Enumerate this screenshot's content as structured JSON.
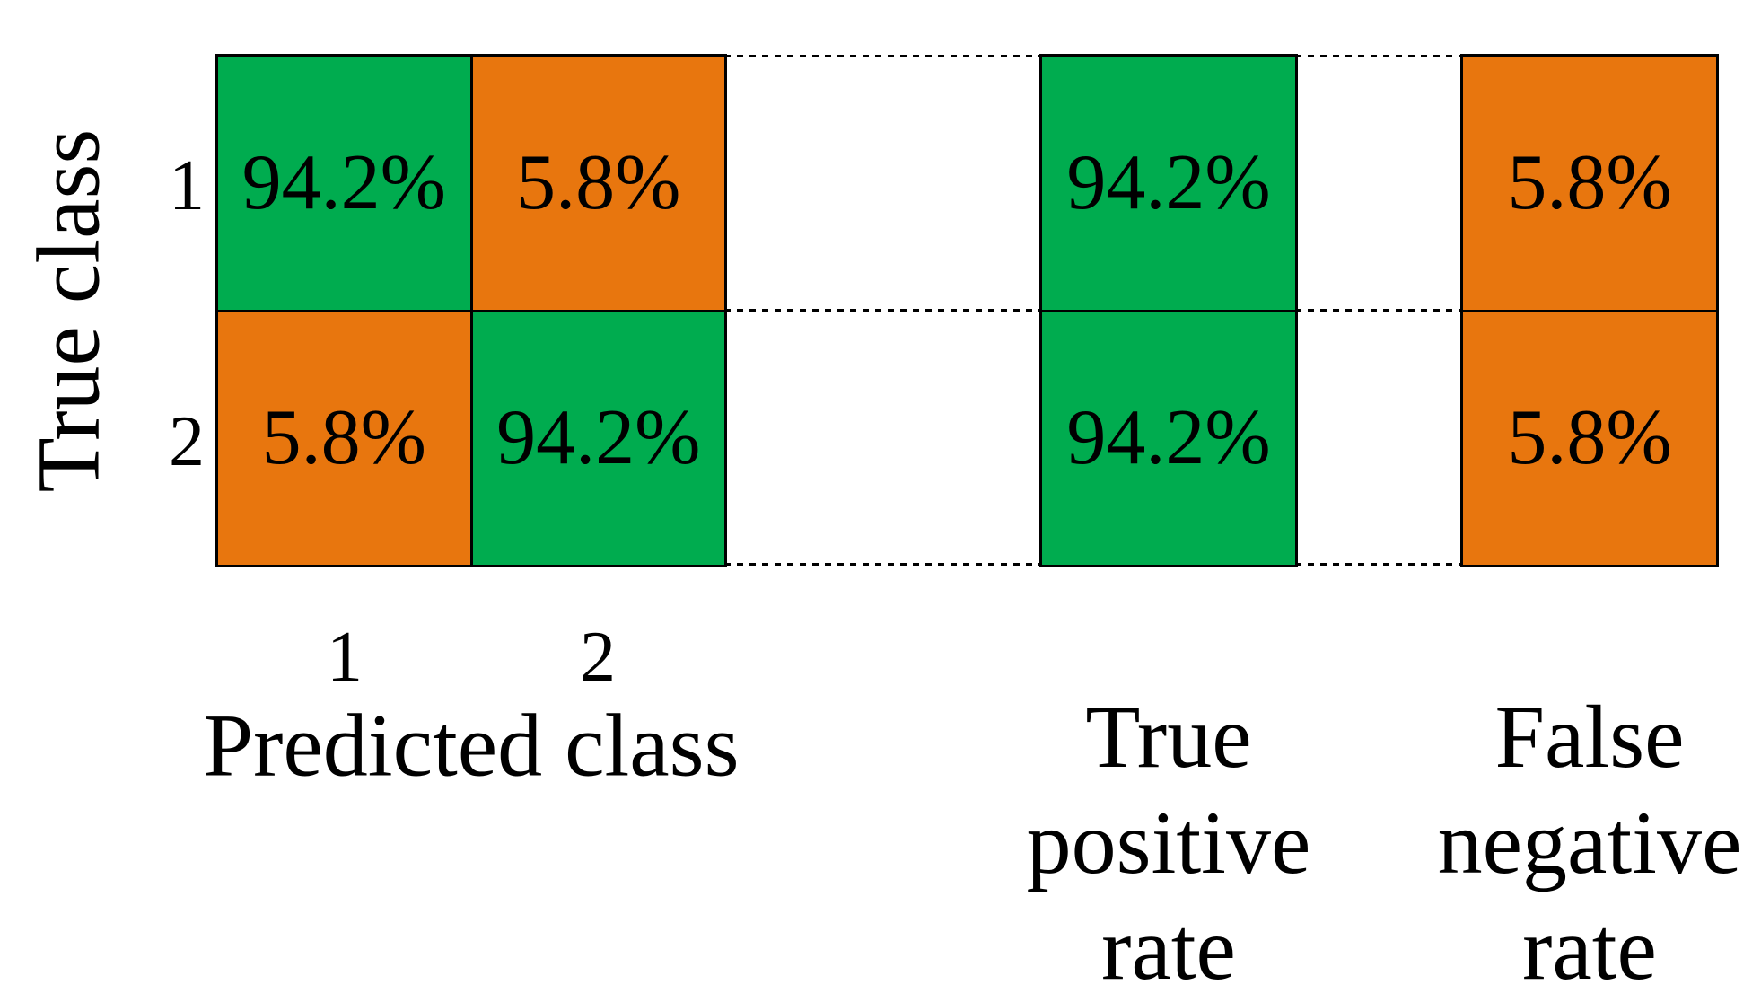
{
  "theme": {
    "green": "#00AC4F",
    "orange": "#E8760E",
    "line_color": "#000000",
    "background": "#FFFFFF",
    "text_color": "#000000"
  },
  "y_axis": {
    "label": "True class",
    "ticks": [
      "1",
      "2"
    ]
  },
  "x_axis": {
    "label": "Predicted class",
    "ticks": [
      "1",
      "2"
    ]
  },
  "matrix_cells": [
    [
      "94.2%",
      "5.8%"
    ],
    [
      "5.8%",
      "94.2%"
    ]
  ],
  "tpr_column": {
    "label_lines": [
      "True",
      "positive",
      "rate"
    ],
    "cells": [
      "94.2%",
      "94.2%"
    ]
  },
  "fnr_column": {
    "label_lines": [
      "False",
      "negative",
      "rate"
    ],
    "cells": [
      "5.8%",
      "5.8%"
    ]
  },
  "chart_data": {
    "type": "heatmap",
    "subtype": "confusion-matrix",
    "title": "",
    "xlabel": "Predicted class",
    "ylabel": "True class",
    "x_tick_labels": [
      "1",
      "2"
    ],
    "y_tick_labels": [
      "1",
      "2"
    ],
    "matrix_percent": [
      [
        94.2,
        5.8
      ],
      [
        5.8,
        94.2
      ]
    ],
    "cell_colors": [
      [
        "green",
        "orange"
      ],
      [
        "orange",
        "green"
      ]
    ],
    "summary_columns": [
      {
        "name": "True positive rate",
        "values_percent": [
          94.2,
          94.2
        ],
        "color": "green"
      },
      {
        "name": "False negative rate",
        "values_percent": [
          5.8,
          5.8
        ],
        "color": "orange"
      }
    ],
    "legend": "none",
    "grid": "dashed horizontal connectors at row boundaries between matrix and summary columns"
  }
}
